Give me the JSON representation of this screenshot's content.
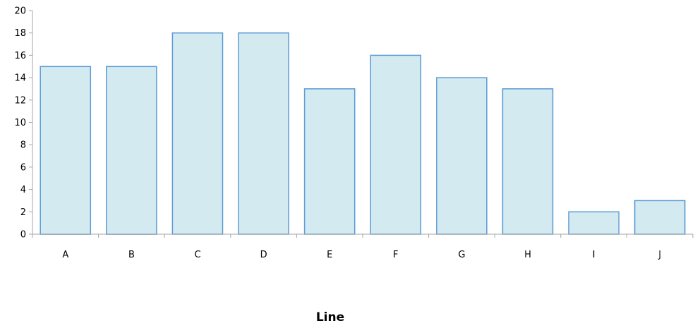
{
  "chart_data": {
    "type": "bar",
    "categories": [
      "A",
      "B",
      "C",
      "D",
      "E",
      "F",
      "G",
      "H",
      "I",
      "J"
    ],
    "values": [
      15,
      15,
      18,
      18,
      13,
      16,
      14,
      13,
      2,
      3
    ],
    "xlabel": "Line",
    "ylabel": "",
    "ylim": [
      0,
      20
    ],
    "yticks": [
      "0",
      "2",
      "4",
      "6",
      "8",
      "10",
      "12",
      "14",
      "16",
      "18",
      "20"
    ],
    "grid": false,
    "legend": "none",
    "colors": {
      "bar_fill": "#d3eaf0",
      "bar_stroke": "#5b9bd5",
      "axis": "#a6a6a6",
      "text": "#000000"
    }
  }
}
